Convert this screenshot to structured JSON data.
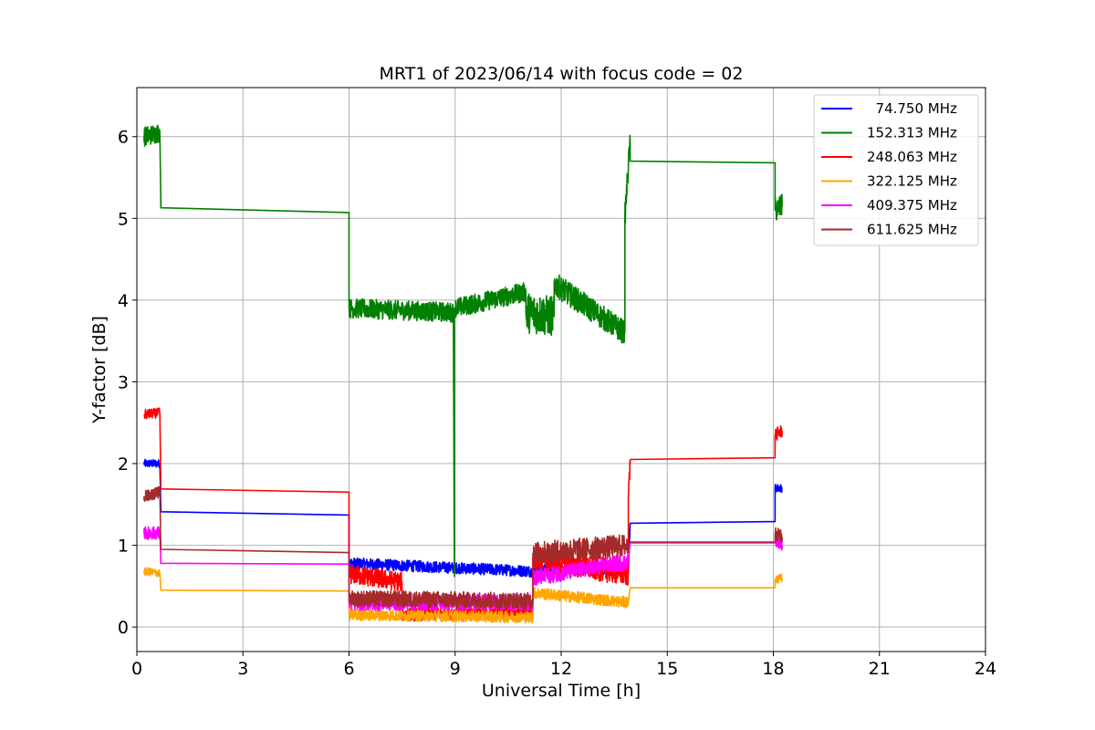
{
  "chart_data": {
    "type": "line",
    "title": "MRT1 of 2023/06/14 with focus code = 02",
    "xlabel": "Universal Time [h]",
    "ylabel": "Y-factor [dB]",
    "xlim": [
      0,
      24
    ],
    "ylim": [
      -0.3,
      6.6
    ],
    "xticks": [
      0,
      3,
      6,
      9,
      12,
      15,
      18,
      21,
      24
    ],
    "xtick_labels": [
      "0",
      "3",
      "6",
      "9",
      "12",
      "15",
      "18",
      "21",
      "24"
    ],
    "yticks": [
      0,
      1,
      2,
      3,
      4,
      5,
      6
    ],
    "ytick_labels": [
      "0",
      "1",
      "2",
      "3",
      "4",
      "5",
      "6"
    ],
    "grid": true,
    "legend_position": "top-right",
    "series": [
      {
        "name": "  74.750 MHz",
        "color": "#0000ff",
        "segments": [
          {
            "x": [
              0.2,
              0.65
            ],
            "y": [
              2.0,
              2.0
            ],
            "noise": 0.05
          },
          {
            "x": [
              0.68,
              6.0
            ],
            "y": [
              1.41,
              1.37
            ],
            "noise": 0
          },
          {
            "x": [
              6.0,
              11.3
            ],
            "y": [
              0.78,
              0.68
            ],
            "noise": 0.07
          },
          {
            "x": [
              11.3,
              13.9
            ],
            "y": [
              0.72,
              0.68
            ],
            "noise": 0.06
          },
          {
            "x": [
              13.95,
              18.05
            ],
            "y": [
              1.27,
              1.29
            ],
            "noise": 0
          },
          {
            "x": [
              18.05,
              18.25
            ],
            "y": [
              1.7,
              1.7
            ],
            "noise": 0.05
          }
        ]
      },
      {
        "name": "152.313 MHz",
        "color": "#008000",
        "segments": [
          {
            "x": [
              0.2,
              0.65
            ],
            "y": [
              6.0,
              6.05
            ],
            "noise": 0.12
          },
          {
            "x": [
              0.68,
              6.0
            ],
            "y": [
              5.13,
              5.07
            ],
            "noise": 0
          },
          {
            "x": [
              6.0,
              8.95
            ],
            "y": [
              3.9,
              3.85
            ],
            "noise": 0.12
          },
          {
            "x": [
              8.95,
              8.98
            ],
            "y": [
              3.9,
              0.62
            ],
            "noise": 0
          },
          {
            "x": [
              8.98,
              11.0
            ],
            "y": [
              3.9,
              4.1
            ],
            "noise": 0.12
          },
          {
            "x": [
              11.0,
              11.8
            ],
            "y": [
              3.85,
              3.8
            ],
            "noise": 0.25
          },
          {
            "x": [
              11.8,
              13.8
            ],
            "y": [
              4.2,
              3.6
            ],
            "noise": 0.15
          },
          {
            "x": [
              13.8,
              13.95
            ],
            "y": [
              5.0,
              5.95
            ],
            "noise": 0.15
          },
          {
            "x": [
              13.95,
              18.05
            ],
            "y": [
              5.7,
              5.68
            ],
            "noise": 0
          },
          {
            "x": [
              18.05,
              18.25
            ],
            "y": [
              5.1,
              5.15
            ],
            "noise": 0.15
          }
        ]
      },
      {
        "name": "248.063 MHz",
        "color": "#ff0000",
        "segments": [
          {
            "x": [
              0.2,
              0.65
            ],
            "y": [
              2.6,
              2.62
            ],
            "noise": 0.06
          },
          {
            "x": [
              0.68,
              6.0
            ],
            "y": [
              1.69,
              1.65
            ],
            "noise": 0
          },
          {
            "x": [
              6.0,
              7.5
            ],
            "y": [
              0.65,
              0.55
            ],
            "noise": 0.12
          },
          {
            "x": [
              7.5,
              11.2
            ],
            "y": [
              0.15,
              0.2
            ],
            "noise": 0.08
          },
          {
            "x": [
              11.2,
              13.9
            ],
            "y": [
              0.85,
              0.65
            ],
            "noise": 0.15
          },
          {
            "x": [
              13.9,
              13.95
            ],
            "y": [
              1.6,
              2.0
            ],
            "noise": 0.12
          },
          {
            "x": [
              13.95,
              18.05
            ],
            "y": [
              2.05,
              2.07
            ],
            "noise": 0
          },
          {
            "x": [
              18.05,
              18.25
            ],
            "y": [
              2.35,
              2.4
            ],
            "noise": 0.08
          }
        ]
      },
      {
        "name": "322.125 MHz",
        "color": "#ffa500",
        "segments": [
          {
            "x": [
              0.2,
              0.65
            ],
            "y": [
              0.68,
              0.66
            ],
            "noise": 0.05
          },
          {
            "x": [
              0.68,
              6.0
            ],
            "y": [
              0.45,
              0.44
            ],
            "noise": 0
          },
          {
            "x": [
              6.0,
              11.2
            ],
            "y": [
              0.15,
              0.12
            ],
            "noise": 0.07
          },
          {
            "x": [
              11.2,
              13.9
            ],
            "y": [
              0.42,
              0.3
            ],
            "noise": 0.07
          },
          {
            "x": [
              13.95,
              18.05
            ],
            "y": [
              0.48,
              0.48
            ],
            "noise": 0
          },
          {
            "x": [
              18.05,
              18.25
            ],
            "y": [
              0.58,
              0.6
            ],
            "noise": 0.05
          }
        ]
      },
      {
        "name": "409.375 MHz",
        "color": "#ff00ff",
        "segments": [
          {
            "x": [
              0.2,
              0.65
            ],
            "y": [
              1.15,
              1.15
            ],
            "noise": 0.08
          },
          {
            "x": [
              0.68,
              6.0
            ],
            "y": [
              0.78,
              0.77
            ],
            "noise": 0
          },
          {
            "x": [
              6.0,
              11.2
            ],
            "y": [
              0.3,
              0.3
            ],
            "noise": 0.1
          },
          {
            "x": [
              11.2,
              13.9
            ],
            "y": [
              0.6,
              0.8
            ],
            "noise": 0.1
          },
          {
            "x": [
              13.95,
              18.05
            ],
            "y": [
              1.03,
              1.03
            ],
            "noise": 0
          },
          {
            "x": [
              18.05,
              18.25
            ],
            "y": [
              1.05,
              1.0
            ],
            "noise": 0.06
          }
        ]
      },
      {
        "name": "611.625 MHz",
        "color": "#a52a2a",
        "segments": [
          {
            "x": [
              0.2,
              0.65
            ],
            "y": [
              1.6,
              1.65
            ],
            "noise": 0.07
          },
          {
            "x": [
              0.68,
              6.0
            ],
            "y": [
              0.95,
              0.91
            ],
            "noise": 0
          },
          {
            "x": [
              6.0,
              11.2
            ],
            "y": [
              0.35,
              0.32
            ],
            "noise": 0.1
          },
          {
            "x": [
              11.2,
              13.9
            ],
            "y": [
              0.9,
              1.0
            ],
            "noise": 0.14
          },
          {
            "x": [
              13.95,
              18.05
            ],
            "y": [
              1.04,
              1.04
            ],
            "noise": 0
          },
          {
            "x": [
              18.05,
              18.25
            ],
            "y": [
              1.15,
              1.1
            ],
            "noise": 0.08
          }
        ]
      }
    ]
  }
}
